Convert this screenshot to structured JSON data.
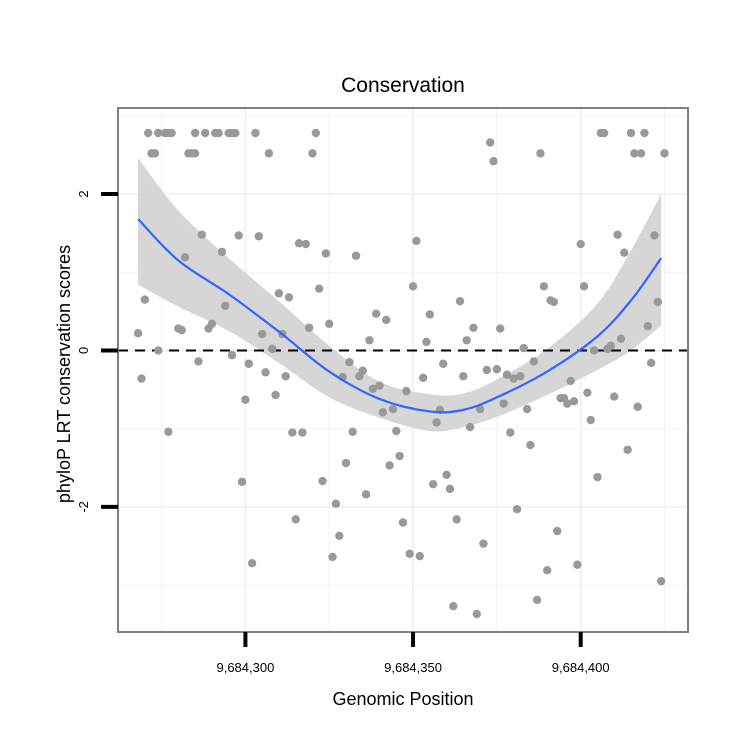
{
  "chart_data": {
    "type": "scatter",
    "title": "Conservation",
    "xlabel": "Genomic Position",
    "ylabel": "phyloP LRT conservation scores",
    "xlim": [
      9684262,
      9684432
    ],
    "ylim": [
      -3.6,
      3.1
    ],
    "x_ticks": [
      {
        "value": 9684300,
        "label": "9,684,300"
      },
      {
        "value": 9684350,
        "label": "9,684,350"
      },
      {
        "value": 9684400,
        "label": "9,684,400"
      }
    ],
    "y_ticks": [
      {
        "value": -2,
        "label": "-2"
      },
      {
        "value": 0,
        "label": "0"
      },
      {
        "value": 2,
        "label": "2"
      }
    ],
    "grid": true,
    "reference_line": {
      "y": 0,
      "style": "dashed"
    },
    "colors": {
      "points": "#999999",
      "trend": "#3366ff",
      "band": "#d6d6d6",
      "panel_border": "#808080",
      "grid": "#f2f2f2"
    },
    "points": [
      [
        9684268,
        0.22
      ],
      [
        9684269,
        -0.36
      ],
      [
        9684270,
        0.65
      ],
      [
        9684271,
        2.78
      ],
      [
        9684272,
        2.52
      ],
      [
        9684273,
        2.52
      ],
      [
        9684274,
        2.78
      ],
      [
        9684274,
        0.0
      ],
      [
        9684276,
        2.78
      ],
      [
        9684277,
        2.78
      ],
      [
        9684278,
        2.78
      ],
      [
        9684277,
        -1.04
      ],
      [
        9684280,
        0.28
      ],
      [
        9684281,
        0.26
      ],
      [
        9684282,
        1.19
      ],
      [
        9684283,
        2.52
      ],
      [
        9684284,
        2.52
      ],
      [
        9684285,
        2.78
      ],
      [
        9684285,
        2.52
      ],
      [
        9684286,
        -0.14
      ],
      [
        9684287,
        1.48
      ],
      [
        9684288,
        2.78
      ],
      [
        9684289,
        0.28
      ],
      [
        9684290,
        0.34
      ],
      [
        9684291,
        2.78
      ],
      [
        9684292,
        2.78
      ],
      [
        9684293,
        1.26
      ],
      [
        9684294,
        0.57
      ],
      [
        9684295,
        2.78
      ],
      [
        9684296,
        2.78
      ],
      [
        9684296,
        -0.06
      ],
      [
        9684297,
        2.78
      ],
      [
        9684298,
        1.47
      ],
      [
        9684299,
        -1.68
      ],
      [
        9684300,
        -0.63
      ],
      [
        9684301,
        -0.17
      ],
      [
        9684302,
        -2.72
      ],
      [
        9684303,
        2.78
      ],
      [
        9684304,
        1.46
      ],
      [
        9684305,
        0.21
      ],
      [
        9684306,
        -0.28
      ],
      [
        9684307,
        2.52
      ],
      [
        9684308,
        0.02
      ],
      [
        9684309,
        -0.57
      ],
      [
        9684310,
        0.73
      ],
      [
        9684311,
        0.21
      ],
      [
        9684312,
        -0.33
      ],
      [
        9684313,
        0.68
      ],
      [
        9684314,
        -1.05
      ],
      [
        9684315,
        -2.16
      ],
      [
        9684316,
        1.37
      ],
      [
        9684317,
        -1.05
      ],
      [
        9684318,
        1.36
      ],
      [
        9684319,
        0.29
      ],
      [
        9684320,
        2.52
      ],
      [
        9684321,
        2.78
      ],
      [
        9684322,
        0.79
      ],
      [
        9684323,
        -1.67
      ],
      [
        9684324,
        1.24
      ],
      [
        9684325,
        0.34
      ],
      [
        9684326,
        -2.64
      ],
      [
        9684327,
        -1.96
      ],
      [
        9684328,
        -2.37
      ],
      [
        9684329,
        -0.34
      ],
      [
        9684330,
        -1.44
      ],
      [
        9684331,
        -0.15
      ],
      [
        9684332,
        -1.04
      ],
      [
        9684333,
        1.21
      ],
      [
        9684334,
        -0.33
      ],
      [
        9684335,
        -0.26
      ],
      [
        9684336,
        -1.84
      ],
      [
        9684337,
        0.13
      ],
      [
        9684338,
        -0.49
      ],
      [
        9684339,
        0.47
      ],
      [
        9684340,
        -0.45
      ],
      [
        9684341,
        -0.79
      ],
      [
        9684342,
        0.39
      ],
      [
        9684343,
        -1.47
      ],
      [
        9684344,
        -0.75
      ],
      [
        9684345,
        -1.03
      ],
      [
        9684346,
        -1.35
      ],
      [
        9684347,
        -2.2
      ],
      [
        9684348,
        -0.52
      ],
      [
        9684349,
        -2.6
      ],
      [
        9684350,
        0.82
      ],
      [
        9684351,
        1.4
      ],
      [
        9684352,
        -2.63
      ],
      [
        9684353,
        -0.35
      ],
      [
        9684354,
        0.11
      ],
      [
        9684355,
        0.46
      ],
      [
        9684356,
        -1.71
      ],
      [
        9684357,
        -0.92
      ],
      [
        9684358,
        -0.76
      ],
      [
        9684359,
        -0.17
      ],
      [
        9684360,
        -1.59
      ],
      [
        9684361,
        -1.77
      ],
      [
        9684362,
        -3.27
      ],
      [
        9684363,
        -2.16
      ],
      [
        9684364,
        0.63
      ],
      [
        9684365,
        -0.33
      ],
      [
        9684366,
        0.13
      ],
      [
        9684367,
        -0.98
      ],
      [
        9684368,
        0.29
      ],
      [
        9684369,
        -3.37
      ],
      [
        9684370,
        -0.75
      ],
      [
        9684371,
        -2.47
      ],
      [
        9684372,
        -0.25
      ],
      [
        9684373,
        2.66
      ],
      [
        9684374,
        2.42
      ],
      [
        9684375,
        -0.24
      ],
      [
        9684376,
        0.28
      ],
      [
        9684377,
        -0.68
      ],
      [
        9684378,
        -0.31
      ],
      [
        9684379,
        -1.05
      ],
      [
        9684380,
        -0.36
      ],
      [
        9684381,
        -2.03
      ],
      [
        9684382,
        -0.33
      ],
      [
        9684383,
        0.03
      ],
      [
        9684384,
        -0.75
      ],
      [
        9684385,
        -1.21
      ],
      [
        9684386,
        -0.14
      ],
      [
        9684387,
        -3.19
      ],
      [
        9684388,
        2.52
      ],
      [
        9684389,
        0.82
      ],
      [
        9684390,
        -2.81
      ],
      [
        9684391,
        0.64
      ],
      [
        9684392,
        0.62
      ],
      [
        9684393,
        -2.31
      ],
      [
        9684394,
        -0.61
      ],
      [
        9684395,
        -0.61
      ],
      [
        9684396,
        -0.68
      ],
      [
        9684397,
        -0.39
      ],
      [
        9684398,
        -0.65
      ],
      [
        9684399,
        -2.74
      ],
      [
        9684400,
        1.36
      ],
      [
        9684401,
        0.82
      ],
      [
        9684402,
        -0.54
      ],
      [
        9684403,
        -0.89
      ],
      [
        9684404,
        0.0
      ],
      [
        9684405,
        -1.62
      ],
      [
        9684406,
        2.78
      ],
      [
        9684407,
        2.78
      ],
      [
        9684408,
        0.02
      ],
      [
        9684409,
        0.06
      ],
      [
        9684410,
        -0.59
      ],
      [
        9684411,
        1.48
      ],
      [
        9684412,
        0.15
      ],
      [
        9684413,
        1.25
      ],
      [
        9684414,
        -1.27
      ],
      [
        9684415,
        2.78
      ],
      [
        9684416,
        2.52
      ],
      [
        9684417,
        -0.72
      ],
      [
        9684418,
        2.52
      ],
      [
        9684419,
        2.78
      ],
      [
        9684420,
        0.31
      ],
      [
        9684421,
        -0.16
      ],
      [
        9684422,
        1.47
      ],
      [
        9684423,
        0.62
      ],
      [
        9684424,
        -2.95
      ],
      [
        9684425,
        2.52
      ]
    ],
    "trend_line": {
      "x": [
        9684268,
        9684280,
        9684295,
        9684310,
        9684325,
        9684340,
        9684355,
        9684365,
        9684375,
        9684390,
        9684405,
        9684415,
        9684424
      ],
      "y": [
        1.68,
        1.15,
        0.72,
        0.24,
        -0.27,
        -0.62,
        -0.78,
        -0.76,
        -0.6,
        -0.27,
        0.18,
        0.64,
        1.18
      ],
      "upper": [
        2.46,
        1.79,
        1.18,
        0.63,
        0.06,
        -0.4,
        -0.56,
        -0.55,
        -0.37,
        0.02,
        0.6,
        1.28,
        2.0
      ],
      "lower": [
        0.84,
        0.56,
        0.25,
        -0.16,
        -0.6,
        -0.86,
        -1.03,
        -0.98,
        -0.85,
        -0.57,
        -0.25,
        0.0,
        0.32
      ]
    }
  }
}
